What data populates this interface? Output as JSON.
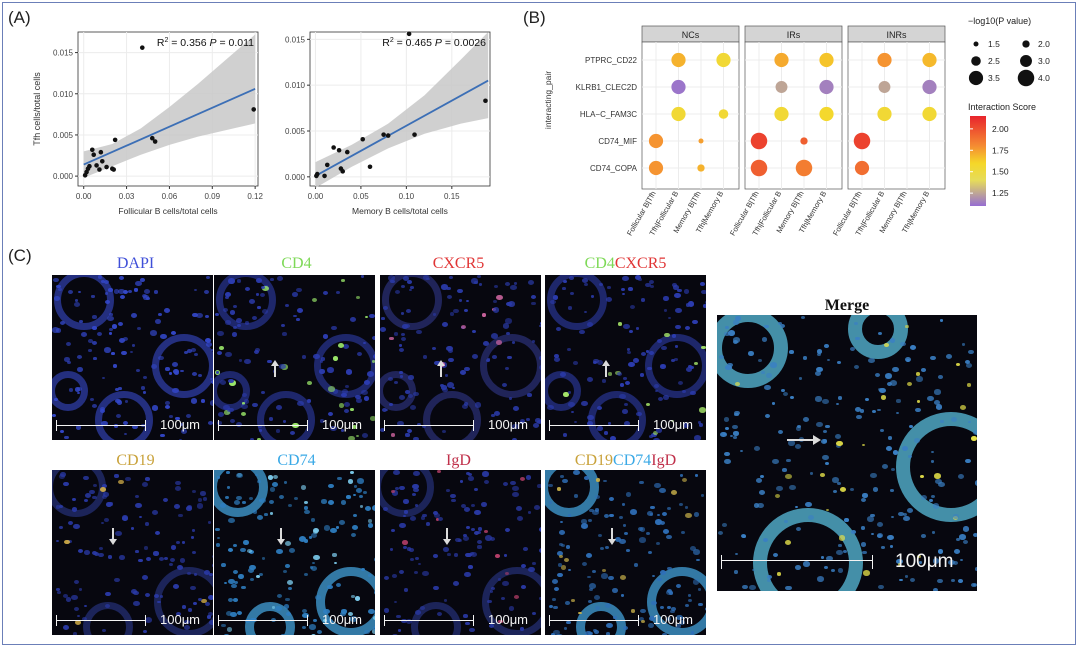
{
  "panel_labels": {
    "a": "(A)",
    "b": "(B)",
    "c": "(C)"
  },
  "colors": {
    "point": "#111111",
    "fit_line": "#3c6fb6",
    "ci_band": "#c8c8c8",
    "facet_strip": "#d4d4d4",
    "dapi": "#3f4fd8",
    "cd4": "#7ed957",
    "cxcr5": "#e03535",
    "cd19": "#c9a23a",
    "cd74": "#3aa9e6",
    "igd": "#c0304a"
  },
  "chart_data": [
    {
      "type": "scatter",
      "title": "",
      "xlabel": "Follicular B cells/total cells",
      "ylabel": "Tfh cells/total cells",
      "xlim": [
        -0.004,
        0.122
      ],
      "ylim": [
        -0.0012,
        0.0175
      ],
      "xticks": [
        0.0,
        0.03,
        0.06,
        0.09,
        0.12
      ],
      "xtick_labels": [
        "0.00",
        "0.03",
        "0.06",
        "0.09",
        "0.12"
      ],
      "yticks": [
        0.0,
        0.005,
        0.01,
        0.015
      ],
      "ytick_labels": [
        "0.000",
        "0.005",
        "0.010",
        "0.015"
      ],
      "annotation": {
        "r2_label": "R",
        "r2_sup": "2",
        "r2_value": " = 0.356",
        "p_label": "P",
        "p_value": " = 0.011"
      },
      "points": [
        [
          0.001,
          0.0001
        ],
        [
          0.002,
          0.0005
        ],
        [
          0.003,
          0.0009
        ],
        [
          0.004,
          0.0012
        ],
        [
          0.006,
          0.0032
        ],
        [
          0.007,
          0.0026
        ],
        [
          0.009,
          0.0013
        ],
        [
          0.011,
          0.0008
        ],
        [
          0.012,
          0.0029
        ],
        [
          0.013,
          0.0018
        ],
        [
          0.016,
          0.0011
        ],
        [
          0.02,
          0.0009
        ],
        [
          0.021,
          0.0008
        ],
        [
          0.022,
          0.0044
        ],
        [
          0.041,
          0.0156
        ],
        [
          0.048,
          0.0046
        ],
        [
          0.05,
          0.0042
        ],
        [
          0.119,
          0.0081
        ]
      ],
      "fit": {
        "x0": 0.0,
        "y0": 0.0014,
        "x1": 0.12,
        "y1": 0.0106
      },
      "ci": [
        [
          0.0,
          -0.0002,
          0.003
        ],
        [
          0.02,
          0.0012,
          0.0039
        ],
        [
          0.04,
          0.0026,
          0.0058
        ],
        [
          0.06,
          0.0038,
          0.0084
        ],
        [
          0.08,
          0.0048,
          0.0112
        ],
        [
          0.1,
          0.0056,
          0.0142
        ],
        [
          0.12,
          0.0064,
          0.0172
        ]
      ]
    },
    {
      "type": "scatter",
      "title": "",
      "xlabel": "Memory B cells/total cells",
      "ylabel": "",
      "xlim": [
        -0.006,
        0.192
      ],
      "ylim": [
        -0.001,
        0.0158
      ],
      "xticks": [
        0.0,
        0.05,
        0.1,
        0.15
      ],
      "xtick_labels": [
        "0.00",
        "0.05",
        "0.10",
        "0.15"
      ],
      "yticks": [
        0.0,
        0.005,
        0.01,
        0.015
      ],
      "ytick_labels": [
        "0.000",
        "0.005",
        "0.010",
        "0.015"
      ],
      "annotation": {
        "r2_label": "R",
        "r2_sup": "2",
        "r2_value": " = 0.465",
        "p_label": "P",
        "p_value": " = 0.0026"
      },
      "points": [
        [
          0.001,
          0.0001
        ],
        [
          0.002,
          0.0003
        ],
        [
          0.01,
          0.0001
        ],
        [
          0.013,
          0.0013
        ],
        [
          0.02,
          0.0032
        ],
        [
          0.026,
          0.0029
        ],
        [
          0.028,
          0.0009
        ],
        [
          0.03,
          0.0006
        ],
        [
          0.035,
          0.0027
        ],
        [
          0.052,
          0.0041
        ],
        [
          0.06,
          0.0011
        ],
        [
          0.075,
          0.0046
        ],
        [
          0.08,
          0.0045
        ],
        [
          0.103,
          0.0156
        ],
        [
          0.109,
          0.0046
        ],
        [
          0.187,
          0.0083
        ]
      ],
      "fit": {
        "x0": 0.0,
        "y0": 0.0001,
        "x1": 0.19,
        "y1": 0.0105
      },
      "ci": [
        [
          0.0,
          -0.0012,
          0.0016
        ],
        [
          0.04,
          0.0011,
          0.0035
        ],
        [
          0.08,
          0.0031,
          0.0058
        ],
        [
          0.12,
          0.0047,
          0.0089
        ],
        [
          0.16,
          0.0058,
          0.0128
        ],
        [
          0.19,
          0.0064,
          0.0158
        ]
      ]
    },
    {
      "type": "scatter",
      "title": "",
      "ylabel": "interacting_pair",
      "facets": [
        "NCs",
        "IRs",
        "INRs"
      ],
      "rows": [
        "PTPRC_CD22",
        "KLRB1_CLEC2D",
        "HLA−C_FAM3C",
        "CD74_MIF",
        "CD74_COPA"
      ],
      "columns": [
        "Follicular B|Tfh",
        "Tfh|Follicular B",
        "Memory B|Tfh",
        "Tfh|Memory B"
      ],
      "size_legend": {
        "title": "−log10(P value)",
        "entries": [
          "1.5",
          "2.0",
          "2.5",
          "3.0",
          "3.5",
          "4.0"
        ],
        "values": [
          1.5,
          2.0,
          2.5,
          3.0,
          3.5,
          4.0
        ]
      },
      "color_legend": {
        "title": "Interaction Score",
        "ticks": [
          "2.00",
          "1.75",
          "1.50",
          "1.25"
        ],
        "tick_values": [
          2.0,
          1.75,
          1.5,
          1.25
        ],
        "range": [
          1.1,
          2.15
        ]
      },
      "dots": [
        {
          "facet": 0,
          "row": 0,
          "col": 1,
          "score": 1.7,
          "logp": 3.5
        },
        {
          "facet": 0,
          "row": 0,
          "col": 3,
          "score": 1.55,
          "logp": 3.5
        },
        {
          "facet": 0,
          "row": 1,
          "col": 1,
          "score": 1.12,
          "logp": 3.5
        },
        {
          "facet": 0,
          "row": 2,
          "col": 1,
          "score": 1.55,
          "logp": 3.5
        },
        {
          "facet": 0,
          "row": 2,
          "col": 3,
          "score": 1.55,
          "logp": 2.5
        },
        {
          "facet": 0,
          "row": 3,
          "col": 0,
          "score": 1.78,
          "logp": 3.5
        },
        {
          "facet": 0,
          "row": 3,
          "col": 2,
          "score": 1.75,
          "logp": 1.5
        },
        {
          "facet": 0,
          "row": 4,
          "col": 0,
          "score": 1.78,
          "logp": 3.5
        },
        {
          "facet": 0,
          "row": 4,
          "col": 2,
          "score": 1.7,
          "logp": 2.0
        },
        {
          "facet": 1,
          "row": 0,
          "col": 1,
          "score": 1.72,
          "logp": 3.5
        },
        {
          "facet": 1,
          "row": 0,
          "col": 3,
          "score": 1.65,
          "logp": 3.5
        },
        {
          "facet": 1,
          "row": 1,
          "col": 1,
          "score": 1.25,
          "logp": 3.0
        },
        {
          "facet": 1,
          "row": 1,
          "col": 3,
          "score": 1.15,
          "logp": 3.5
        },
        {
          "facet": 1,
          "row": 2,
          "col": 1,
          "score": 1.55,
          "logp": 3.5
        },
        {
          "facet": 1,
          "row": 2,
          "col": 3,
          "score": 1.58,
          "logp": 3.5
        },
        {
          "facet": 1,
          "row": 3,
          "col": 0,
          "score": 2.05,
          "logp": 4.0
        },
        {
          "facet": 1,
          "row": 3,
          "col": 2,
          "score": 1.95,
          "logp": 2.0
        },
        {
          "facet": 1,
          "row": 4,
          "col": 0,
          "score": 1.95,
          "logp": 4.0
        },
        {
          "facet": 1,
          "row": 4,
          "col": 2,
          "score": 1.85,
          "logp": 4.0
        },
        {
          "facet": 2,
          "row": 0,
          "col": 1,
          "score": 1.78,
          "logp": 3.5
        },
        {
          "facet": 2,
          "row": 0,
          "col": 3,
          "score": 1.68,
          "logp": 3.5
        },
        {
          "facet": 2,
          "row": 1,
          "col": 1,
          "score": 1.25,
          "logp": 3.0
        },
        {
          "facet": 2,
          "row": 1,
          "col": 3,
          "score": 1.15,
          "logp": 3.5
        },
        {
          "facet": 2,
          "row": 2,
          "col": 1,
          "score": 1.55,
          "logp": 3.5
        },
        {
          "facet": 2,
          "row": 2,
          "col": 3,
          "score": 1.55,
          "logp": 3.5
        },
        {
          "facet": 2,
          "row": 3,
          "col": 0,
          "score": 2.05,
          "logp": 4.0
        },
        {
          "facet": 2,
          "row": 4,
          "col": 0,
          "score": 1.9,
          "logp": 3.5
        }
      ]
    }
  ],
  "micrographs": {
    "row1": [
      {
        "label": "DAPI",
        "scale": "100μm"
      },
      {
        "label": "CD4",
        "scale": "100μm"
      },
      {
        "label": "CXCR5",
        "scale": "100μm"
      },
      {
        "label_a": "CD4",
        "label_b": "CXCR5",
        "scale": "100μm"
      }
    ],
    "row2": [
      {
        "label": "CD19",
        "scale": "100μm"
      },
      {
        "label": "CD74",
        "scale": "100μm"
      },
      {
        "label": "IgD",
        "scale": "100μm"
      },
      {
        "label_a": "CD19",
        "label_b": "CD74",
        "label_c": "IgD",
        "scale": "100μm"
      }
    ],
    "merge": {
      "label": "Merge",
      "scale": "100μm"
    }
  }
}
